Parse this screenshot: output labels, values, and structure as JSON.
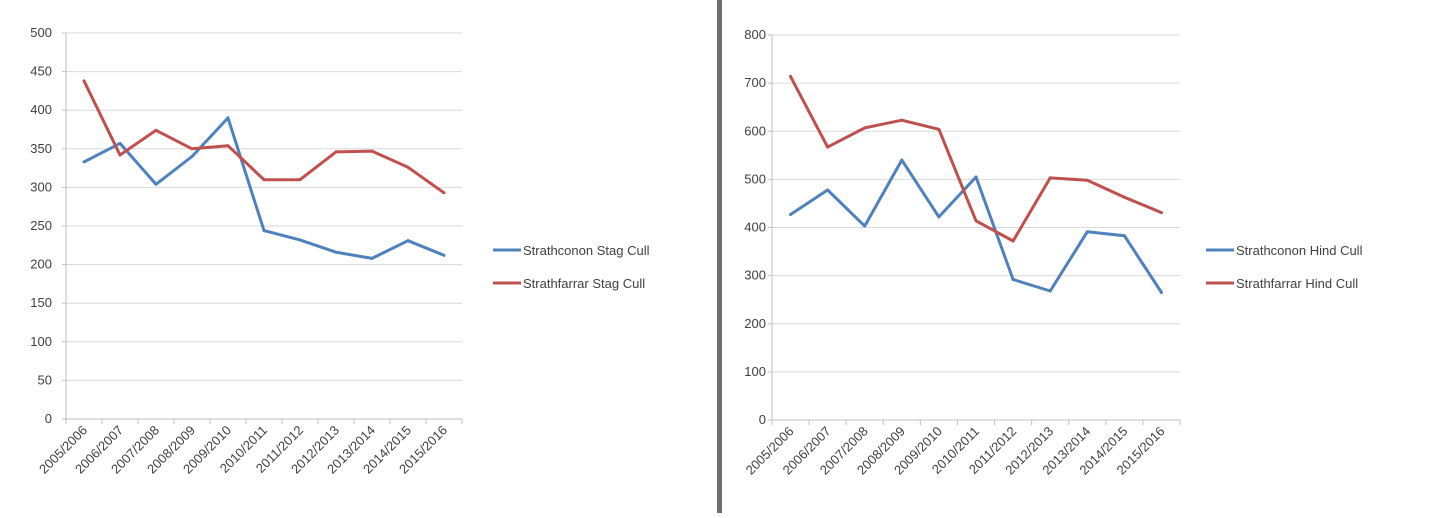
{
  "chart_data": [
    {
      "type": "line",
      "categories": [
        "2005/2006",
        "2006/2007",
        "2007/2008",
        "2008/2009",
        "2009/2010",
        "2010/2011",
        "2011/2012",
        "2012/2013",
        "2013/2014",
        "2014/2015",
        "2015/2016"
      ],
      "ylim": [
        0,
        500
      ],
      "yticks": [
        0,
        50,
        100,
        150,
        200,
        250,
        300,
        350,
        400,
        450,
        500
      ],
      "grid": true,
      "legend": "right",
      "series": [
        {
          "name": "Strathconon Stag Cull",
          "color": "#4f81bd",
          "values": [
            333,
            357,
            304,
            340,
            390,
            244,
            232,
            216,
            208,
            231,
            212
          ]
        },
        {
          "name": "Strathfarrar Stag Cull",
          "color": "#c0504d",
          "values": [
            438,
            342,
            374,
            350,
            354,
            310,
            310,
            346,
            347,
            326,
            293
          ]
        }
      ]
    },
    {
      "type": "line",
      "categories": [
        "2005/2006",
        "2006/2007",
        "2007/2008",
        "2008/2009",
        "2009/2010",
        "2010/2011",
        "2011/2012",
        "2012/2013",
        "2013/2014",
        "2014/2015",
        "2015/2016"
      ],
      "ylim": [
        0,
        800
      ],
      "yticks": [
        0,
        100,
        200,
        300,
        400,
        500,
        600,
        700,
        800
      ],
      "grid": true,
      "legend": "right",
      "series": [
        {
          "name": "Strathconon Hind Cull",
          "color": "#4f81bd",
          "values": [
            427,
            478,
            403,
            540,
            422,
            505,
            292,
            268,
            391,
            383,
            265
          ]
        },
        {
          "name": "Strathfarrar Hind Cull",
          "color": "#c0504d",
          "values": [
            714,
            567,
            607,
            623,
            604,
            414,
            372,
            503,
            498,
            463,
            431
          ]
        }
      ]
    }
  ]
}
